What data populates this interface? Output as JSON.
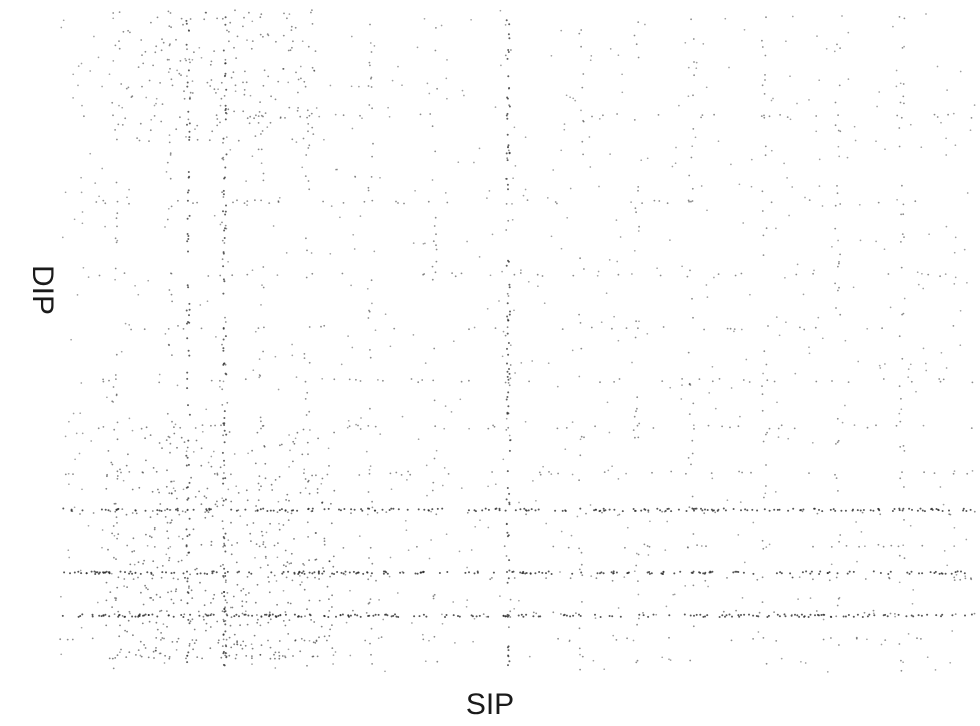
{
  "chart_data": {
    "type": "scatter",
    "title": "",
    "xlabel": "SIP",
    "ylabel": "DIP",
    "xlim": [
      0,
      1
    ],
    "ylim": [
      0,
      1
    ],
    "grid": false,
    "legend": "none",
    "point_color": "#2b2b2b",
    "dense_vertical_x": [
      0.06,
      0.12,
      0.18,
      0.22,
      0.27,
      0.34,
      0.41,
      0.49,
      0.57,
      0.63,
      0.69,
      0.77,
      0.85,
      0.92
    ],
    "dense_horizontal_y": [
      0.05,
      0.09,
      0.14,
      0.19,
      0.24,
      0.3,
      0.37,
      0.44,
      0.52,
      0.6,
      0.71,
      0.84
    ],
    "strong_horizontal_y": [
      0.085,
      0.15,
      0.245
    ],
    "strong_vertical_x": [
      0.14,
      0.18,
      0.49
    ],
    "sparse_points_count": 700
  }
}
